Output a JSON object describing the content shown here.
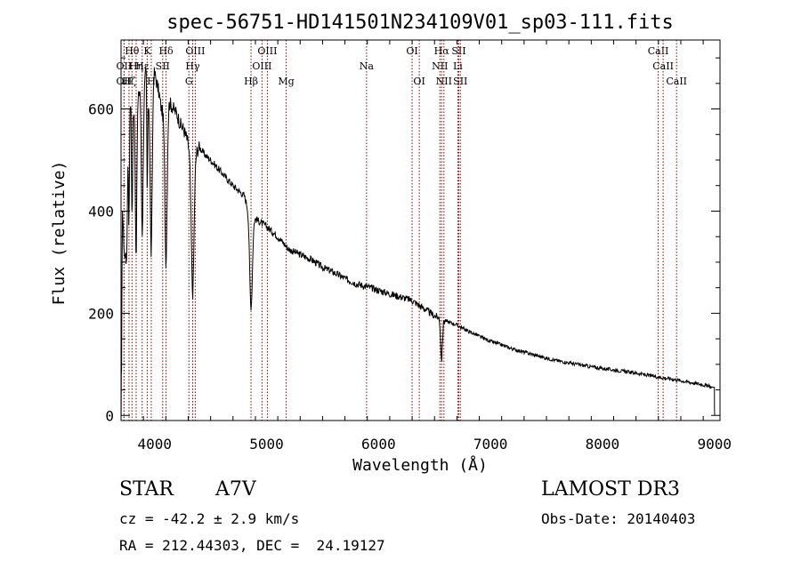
{
  "chart_data": {
    "type": "line",
    "title": "spec-56751-HD141501N234109V01_sp03-111.fits",
    "xlabel": "Wavelength (Å)",
    "ylabel": "Flux (relative)",
    "xlim": [
      3700,
      9050
    ],
    "ylim": [
      -10,
      735
    ],
    "xticks": [
      4000,
      5000,
      6000,
      7000,
      8000,
      9000
    ],
    "yticks": [
      0,
      200,
      400,
      600
    ],
    "xtick_labels": [
      "4000",
      "5000",
      "6000",
      "7000",
      "8000",
      "9000"
    ],
    "ytick_labels": [
      "0",
      "200",
      "400",
      "600"
    ],
    "line_color": "#000000",
    "marker_color": "#8b0000",
    "continuum": [
      [
        3705,
        80
      ],
      [
        3712,
        420
      ],
      [
        3720,
        360
      ],
      [
        3735,
        300
      ],
      [
        3745,
        380
      ],
      [
        3760,
        500
      ],
      [
        3775,
        600
      ],
      [
        3790,
        640
      ],
      [
        3810,
        600
      ],
      [
        3830,
        560
      ],
      [
        3850,
        610
      ],
      [
        3870,
        650
      ],
      [
        3890,
        660
      ],
      [
        3905,
        640
      ],
      [
        3925,
        680
      ],
      [
        3945,
        620
      ],
      [
        3965,
        640
      ],
      [
        3990,
        680
      ],
      [
        4010,
        660
      ],
      [
        4040,
        630
      ],
      [
        4060,
        600
      ],
      [
        4080,
        590
      ],
      [
        4100,
        600
      ],
      [
        4115,
        620
      ],
      [
        4140,
        610
      ],
      [
        4170,
        600
      ],
      [
        4200,
        590
      ],
      [
        4230,
        570
      ],
      [
        4260,
        560
      ],
      [
        4290,
        540
      ],
      [
        4320,
        510
      ],
      [
        4350,
        510
      ],
      [
        4400,
        525
      ],
      [
        4450,
        510
      ],
      [
        4500,
        500
      ],
      [
        4600,
        475
      ],
      [
        4700,
        450
      ],
      [
        4800,
        430
      ],
      [
        4850,
        395
      ],
      [
        4900,
        385
      ],
      [
        5000,
        370
      ],
      [
        5100,
        350
      ],
      [
        5200,
        325
      ],
      [
        5300,
        315
      ],
      [
        5400,
        305
      ],
      [
        5500,
        290
      ],
      [
        5600,
        280
      ],
      [
        5700,
        268
      ],
      [
        5800,
        258
      ],
      [
        5900,
        252
      ],
      [
        6000,
        245
      ],
      [
        6100,
        238
      ],
      [
        6200,
        232
      ],
      [
        6300,
        225
      ],
      [
        6400,
        210
      ],
      [
        6500,
        195
      ],
      [
        6600,
        185
      ],
      [
        6700,
        177
      ],
      [
        6800,
        165
      ],
      [
        6900,
        155
      ],
      [
        7000,
        145
      ],
      [
        7100,
        138
      ],
      [
        7200,
        130
      ],
      [
        7300,
        124
      ],
      [
        7400,
        118
      ],
      [
        7500,
        112
      ],
      [
        7600,
        107
      ],
      [
        7700,
        103
      ],
      [
        7800,
        99
      ],
      [
        7900,
        95
      ],
      [
        8000,
        92
      ],
      [
        8100,
        89
      ],
      [
        8200,
        86
      ],
      [
        8300,
        83
      ],
      [
        8400,
        79
      ],
      [
        8500,
        75
      ],
      [
        8600,
        72
      ],
      [
        8700,
        68
      ],
      [
        8800,
        64
      ],
      [
        8900,
        60
      ],
      [
        8980,
        55
      ]
    ],
    "absorption": [
      {
        "center": 3750,
        "depth": 120,
        "width": 5
      },
      {
        "center": 3771,
        "depth": 200,
        "width": 4
      },
      {
        "center": 3798,
        "depth": 240,
        "width": 5
      },
      {
        "center": 3835,
        "depth": 260,
        "width": 6
      },
      {
        "center": 3889,
        "depth": 300,
        "width": 8
      },
      {
        "center": 3934,
        "depth": 220,
        "width": 4
      },
      {
        "center": 3970,
        "depth": 330,
        "width": 9
      },
      {
        "center": 4102,
        "depth": 300,
        "width": 10
      },
      {
        "center": 4340,
        "depth": 270,
        "width": 12
      },
      {
        "center": 4861,
        "depth": 180,
        "width": 12
      },
      {
        "center": 6563,
        "depth": 80,
        "width": 8
      }
    ],
    "edge_points": [
      [
        3700,
        60
      ],
      [
        3701,
        0
      ],
      [
        3702,
        80
      ],
      [
        9000,
        55
      ],
      [
        9001,
        10
      ],
      [
        9002,
        0
      ]
    ],
    "line_markers": [
      {
        "label": "Hθ",
        "wavelength": 3798,
        "row": 0
      },
      {
        "label": "K",
        "wavelength": 3934,
        "row": 0
      },
      {
        "label": "Hδ",
        "wavelength": 4102,
        "row": 0
      },
      {
        "label": "OIII",
        "wavelength": 4363,
        "row": 0
      },
      {
        "label": "OIII",
        "wavelength": 5007,
        "row": 0
      },
      {
        "label": "OI",
        "wavelength": 6300,
        "row": 0
      },
      {
        "label": "Hα",
        "wavelength": 6563,
        "row": 0
      },
      {
        "label": "SII",
        "wavelength": 6717,
        "row": 0
      },
      {
        "label": "CaII",
        "wavelength": 8498,
        "row": 0
      },
      {
        "label": "OII",
        "wavelength": 3727,
        "row": 1
      },
      {
        "label": "Hη",
        "wavelength": 3835,
        "row": 1
      },
      {
        "label": "Hε",
        "wavelength": 3889,
        "row": 1
      },
      {
        "label": "SII",
        "wavelength": 4072,
        "row": 1
      },
      {
        "label": "Hγ",
        "wavelength": 4340,
        "row": 1
      },
      {
        "label": "OIII",
        "wavelength": 4959,
        "row": 1
      },
      {
        "label": "Na",
        "wavelength": 5893,
        "row": 1
      },
      {
        "label": "NII",
        "wavelength": 6548,
        "row": 1
      },
      {
        "label": "Li",
        "wavelength": 6708,
        "row": 1
      },
      {
        "label": "CaII",
        "wavelength": 8542,
        "row": 1
      },
      {
        "label": "OII",
        "wavelength": 3727,
        "row": 2
      },
      {
        "label": "Hζ",
        "wavelength": 3771,
        "row": 2
      },
      {
        "label": "H",
        "wavelength": 3970,
        "row": 2
      },
      {
        "label": "G",
        "wavelength": 4306,
        "row": 2
      },
      {
        "label": "Hβ",
        "wavelength": 4861,
        "row": 2
      },
      {
        "label": "Mg",
        "wavelength": 5175,
        "row": 2
      },
      {
        "label": "OI",
        "wavelength": 6364,
        "row": 2
      },
      {
        "label": "NII",
        "wavelength": 6584,
        "row": 2
      },
      {
        "label": "SII",
        "wavelength": 6731,
        "row": 2
      },
      {
        "label": "CaII",
        "wavelength": 8662,
        "row": 2
      }
    ]
  },
  "info": {
    "class_label": "STAR",
    "subclass": "A7V",
    "survey": "LAMOST DR3",
    "redshift": "cz = -42.2 ± 2.9 km/s",
    "obs_date": "Obs-Date: 20140403",
    "coords": "RA = 212.44303, DEC =  24.19127"
  }
}
